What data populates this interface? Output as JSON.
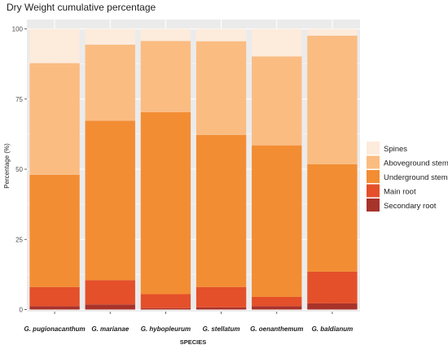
{
  "chart_data": {
    "type": "bar",
    "stacked": true,
    "title": "Dry Weight cumulative percentage",
    "xlabel": "SPECIES",
    "ylabel": "Percentage (%)",
    "ylim": [
      0,
      100
    ],
    "yticks": [
      "0",
      "25",
      "50",
      "75",
      "100"
    ],
    "grid": true,
    "legend_position": "right",
    "categories": [
      "G. pugionacanthum",
      "G. marianae",
      "G. hybopleurum",
      "G. stellatum",
      "G. oenanthemum",
      "G. baldianum"
    ],
    "series": [
      {
        "name": "Secondary root",
        "color": "#a8332b",
        "values": [
          1.2,
          1.8,
          0.5,
          0.8,
          1.2,
          2.2
        ]
      },
      {
        "name": "Main root",
        "color": "#e4502a",
        "values": [
          6.8,
          8.7,
          5.0,
          7.2,
          3.3,
          11.3
        ]
      },
      {
        "name": "Underground stem",
        "color": "#f38d33",
        "values": [
          40.0,
          56.8,
          64.8,
          54.2,
          54.0,
          38.3
        ]
      },
      {
        "name": "Aboveground stem",
        "color": "#fbbc82",
        "values": [
          39.8,
          27.1,
          25.4,
          33.4,
          31.7,
          45.8
        ]
      },
      {
        "name": "Spines",
        "color": "#fdebdc",
        "values": [
          12.2,
          5.6,
          4.3,
          4.4,
          9.8,
          2.4
        ]
      }
    ],
    "legend_order": [
      "Spines",
      "Aboveground stem",
      "Underground stem",
      "Main root",
      "Secondary root"
    ]
  }
}
